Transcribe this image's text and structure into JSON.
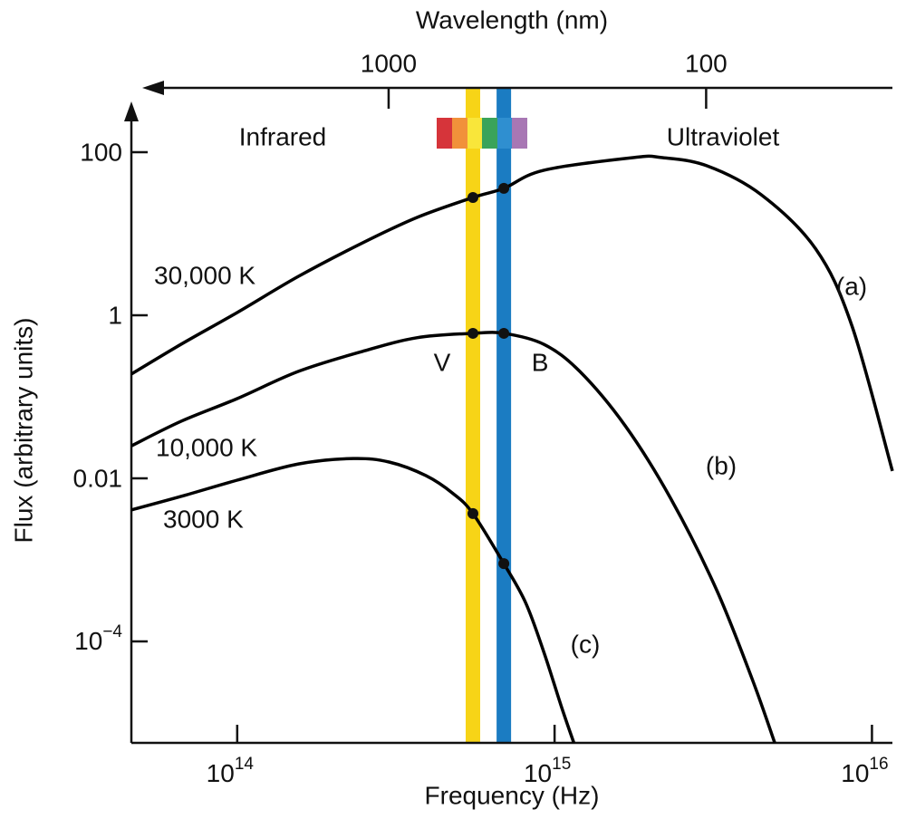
{
  "chart_data": {
    "type": "line",
    "xlabel": "Frequency (Hz)",
    "ylabel": "Flux (arbitrary units)",
    "x2label": "Wavelength (nm)",
    "xscale": "log",
    "yscale": "log",
    "xlim": [
      46400000000000.0,
      1.16e+16
    ],
    "ylim": [
      5.7e-06,
      341
    ],
    "x2lim": [
      6460,
      25.9
    ],
    "xticks": [
      {
        "value": 100000000000000.0,
        "label": "10",
        "sup": "14"
      },
      {
        "value": 1000000000000000.0,
        "label": "10",
        "sup": "15"
      },
      {
        "value": 1e+16,
        "label": "10",
        "sup": "16"
      }
    ],
    "yticks": [
      100,
      1,
      0.01,
      {
        "value": 0.0001,
        "label": "10",
        "sup": "−4"
      }
    ],
    "x2ticks": [
      1000,
      100
    ],
    "annotations": [
      "Infrared",
      "Ultraviolet"
    ],
    "bands": [
      {
        "name": "V",
        "color": "#f7d417",
        "x": 553000000000000.0
      },
      {
        "name": "B",
        "color": "#1b7cc2",
        "x": 692000000000000.0
      }
    ],
    "series": [
      {
        "name": "30,000 K",
        "tag": "(a)",
        "color": "#000000",
        "x": [
          46400000000000.0,
          66500000000000.0,
          100000000000000.0,
          156000000000000.0,
          248000000000000.0,
          368000000000000.0,
          553000000000000.0,
          692000000000000.0,
          925000000000000.0,
          1780000000000000.0,
          2170000000000000.0,
          3020000000000000.0,
          4480000000000000.0,
          6650000000000000.0,
          8650000000000000.0,
          1.16e+16
        ],
        "values": [
          0.19,
          0.44,
          1.08,
          3.0,
          7.7,
          15.8,
          27.8,
          36,
          60,
          86,
          86,
          68,
          30,
          6.5,
          0.74,
          0.0123
        ]
      },
      {
        "name": "10,000 K",
        "tag": "(b)",
        "color": "#000000",
        "x": [
          46400000000000.0,
          66500000000000.0,
          100000000000000.0,
          156000000000000.0,
          248000000000000.0,
          368000000000000.0,
          553000000000000.0,
          692000000000000.0,
          925000000000000.0,
          1200000000000000.0,
          1670000000000000.0,
          2320000000000000.0,
          3230000000000000.0,
          4200000000000000.0,
          4940000000000000.0
        ],
        "values": [
          0.025,
          0.05,
          0.095,
          0.205,
          0.36,
          0.53,
          0.6,
          0.6,
          0.44,
          0.205,
          0.044,
          0.0057,
          0.00044,
          3.4e-05,
          5.7e-06
        ]
      },
      {
        "name": "3000 K",
        "tag": "(c)",
        "color": "#000000",
        "x": [
          46400000000000.0,
          66500000000000.0,
          100000000000000.0,
          156000000000000.0,
          232000000000000.0,
          302000000000000.0,
          393000000000000.0,
          479000000000000.0,
          553000000000000.0,
          692000000000000.0,
          810000000000000.0,
          925000000000000.0,
          1050000000000000.0,
          1150000000000000.0
        ],
        "values": [
          0.0041,
          0.006,
          0.0095,
          0.015,
          0.0175,
          0.0158,
          0.0108,
          0.0065,
          0.0037,
          0.0009,
          0.0003,
          7.4e-05,
          1.6e-05,
          5.7e-06
        ]
      }
    ]
  }
}
